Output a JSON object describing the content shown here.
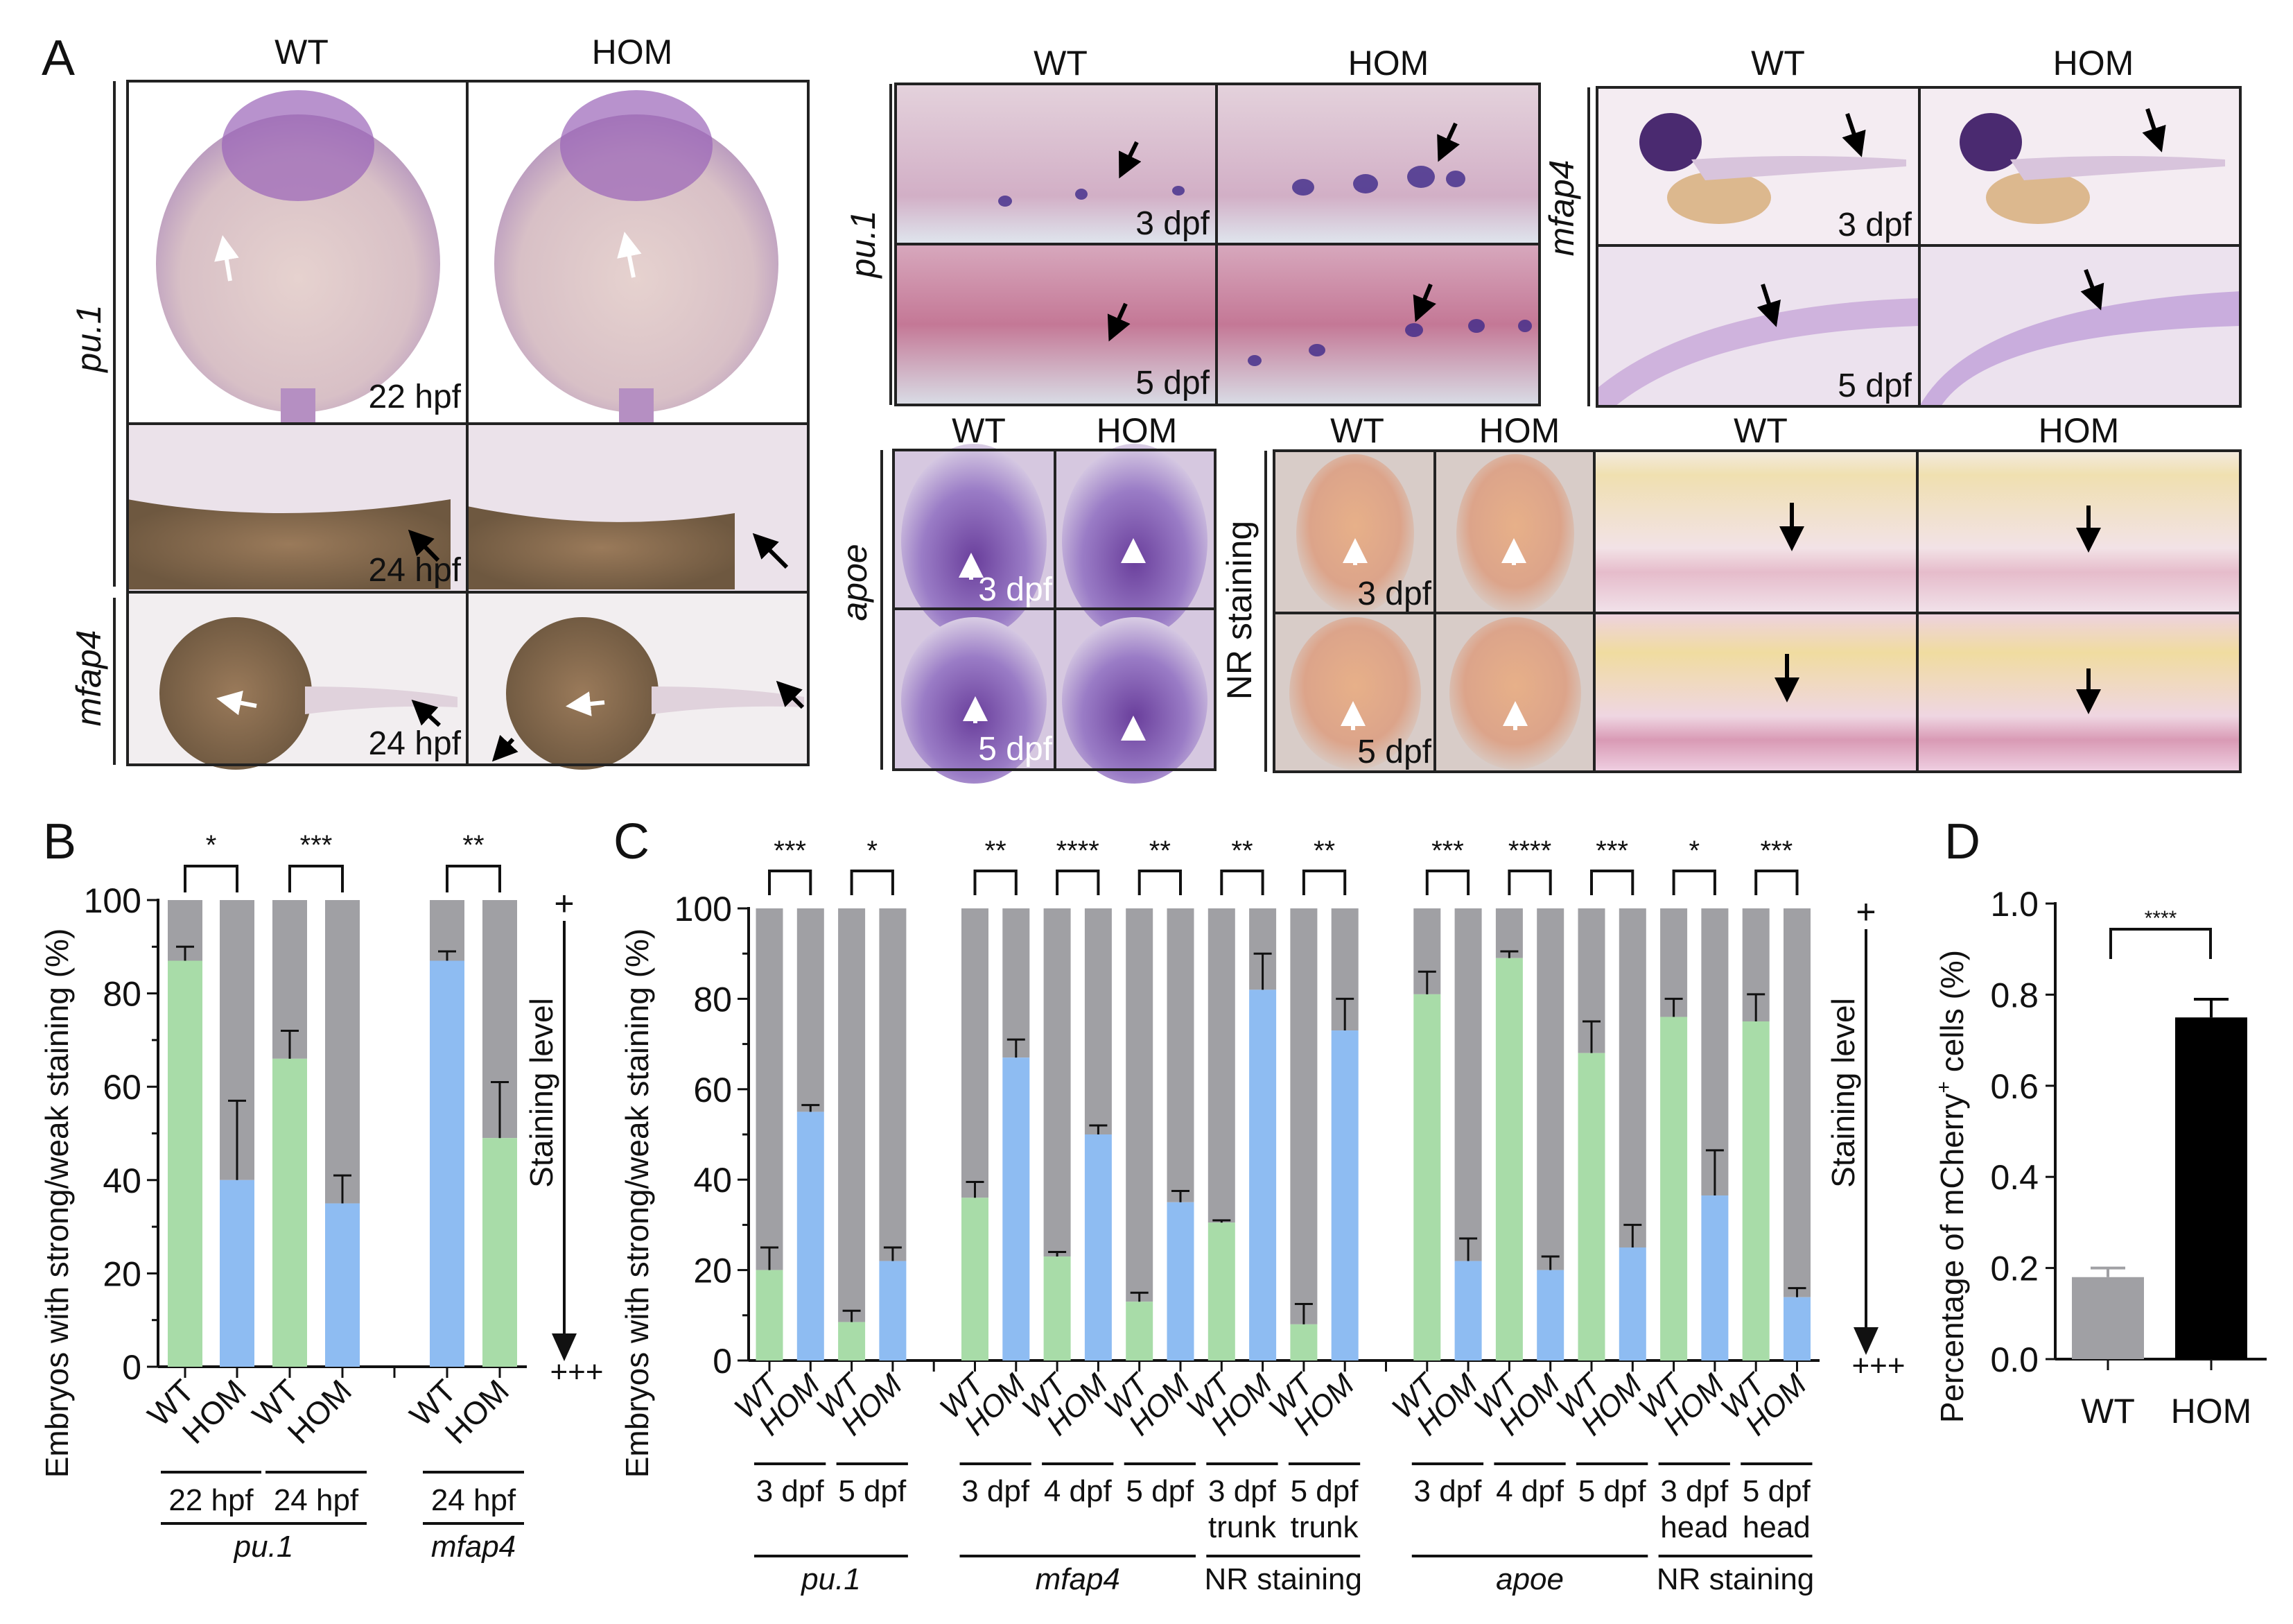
{
  "panel_labels": {
    "a": "A",
    "b": "B",
    "c": "C",
    "d": "D"
  },
  "panel_a": {
    "left": {
      "col_labels": [
        "WT",
        "HOM"
      ],
      "gene_labels": [
        "pu.1",
        "mfap4"
      ],
      "stage_labels": [
        "22 hpf",
        "24 hpf",
        "24 hpf"
      ]
    },
    "pu1_trunk": {
      "gene": "pu.1",
      "col_labels": [
        "WT",
        "HOM"
      ],
      "stage_labels": [
        "3 dpf",
        "5 dpf"
      ]
    },
    "mfap4_larva": {
      "gene": "mfap4",
      "col_labels": [
        "WT",
        "HOM"
      ],
      "stage_labels": [
        "3 dpf",
        "5 dpf"
      ]
    },
    "apoe_head": {
      "gene": "apoe",
      "col_labels": [
        "WT",
        "HOM"
      ],
      "stage_labels": [
        "3 dpf",
        "5 dpf"
      ]
    },
    "nr": {
      "label": "NR staining",
      "col_labels": [
        "WT",
        "HOM",
        "WT",
        "HOM"
      ],
      "stage_labels": [
        "3 dpf",
        "5 dpf"
      ]
    }
  },
  "colors": {
    "green": "#a8dca8",
    "blue": "#8ebcf2",
    "gray": "#a0a0a4",
    "black": "#000000"
  },
  "chart_data": [
    {
      "type": "bar",
      "stacked": true,
      "title": "B",
      "ylabel": "Embryos with strong/weak staining (%)",
      "ylim": [
        0,
        100
      ],
      "yticks": [
        "0",
        "20",
        "40",
        "60",
        "80",
        "100"
      ],
      "categories": [
        "WT",
        "HOM",
        "WT",
        "HOM",
        "WT",
        "HOM"
      ],
      "values": [
        87,
        40,
        66,
        35,
        87,
        49
      ],
      "errors": [
        3,
        17,
        6,
        6,
        2,
        12
      ],
      "bar_colors": [
        "green",
        "blue",
        "green",
        "blue",
        "blue",
        "green"
      ],
      "remainder_color": "gray",
      "subgroups": [
        {
          "label": [
            "22 hpf"
          ],
          "bars": [
            0,
            1
          ]
        },
        {
          "label": [
            "24 hpf"
          ],
          "bars": [
            2,
            3
          ]
        },
        {
          "label": [
            "24 hpf"
          ],
          "bars": [
            4,
            5
          ]
        }
      ],
      "groups": [
        {
          "label": "pu.1",
          "bars": [
            0,
            3
          ]
        },
        {
          "label": "mfap4",
          "bars": [
            4,
            5
          ]
        }
      ],
      "significance": [
        {
          "bars": [
            0,
            1
          ],
          "label": "*"
        },
        {
          "bars": [
            2,
            3
          ],
          "label": "***"
        },
        {
          "bars": [
            4,
            5
          ],
          "label": "**"
        }
      ],
      "scale": {
        "top": "+",
        "bottom": "+++",
        "label": "Staining level"
      }
    },
    {
      "type": "bar",
      "stacked": true,
      "title": "C",
      "ylabel": "Embryos with strong/weak staining (%)",
      "ylim": [
        0,
        100
      ],
      "yticks": [
        "0",
        "20",
        "40",
        "60",
        "80",
        "100"
      ],
      "categories": [
        "WT",
        "HOM",
        "WT",
        "HOM",
        "WT",
        "HOM",
        "WT",
        "HOM",
        "WT",
        "HOM",
        "WT",
        "HOM",
        "WT",
        "HOM",
        "WT",
        "HOM",
        "WT",
        "HOM",
        "WT",
        "HOM",
        "WT",
        "HOM",
        "WT",
        "HOM"
      ],
      "values": [
        20,
        55,
        8.5,
        22,
        36,
        67,
        23,
        50,
        13,
        35,
        30.5,
        82,
        8,
        73,
        81,
        22,
        89,
        20,
        68,
        25,
        76,
        36.5,
        75,
        14
      ],
      "errors": [
        5,
        1.5,
        2.5,
        3,
        3.5,
        4,
        1,
        2,
        2,
        2.5,
        0.5,
        8,
        4.5,
        7,
        5,
        5,
        1.5,
        3,
        7,
        5,
        4,
        10,
        6,
        2
      ],
      "bar_colors": [
        "green",
        "blue",
        "green",
        "blue",
        "green",
        "blue",
        "green",
        "blue",
        "green",
        "blue",
        "green",
        "blue",
        "green",
        "blue",
        "green",
        "blue",
        "green",
        "blue",
        "green",
        "blue",
        "green",
        "blue",
        "green",
        "blue"
      ],
      "remainder_color": "gray",
      "subgroups": [
        {
          "label": [
            "3 dpf"
          ],
          "bars": [
            0,
            1
          ]
        },
        {
          "label": [
            "5 dpf"
          ],
          "bars": [
            2,
            3
          ]
        },
        {
          "label": [
            "3 dpf"
          ],
          "bars": [
            4,
            5
          ]
        },
        {
          "label": [
            "4 dpf"
          ],
          "bars": [
            6,
            7
          ]
        },
        {
          "label": [
            "5 dpf"
          ],
          "bars": [
            8,
            9
          ]
        },
        {
          "label": [
            "3 dpf",
            "trunk"
          ],
          "bars": [
            10,
            11
          ]
        },
        {
          "label": [
            "5 dpf",
            "trunk"
          ],
          "bars": [
            12,
            13
          ]
        },
        {
          "label": [
            "3 dpf"
          ],
          "bars": [
            14,
            15
          ]
        },
        {
          "label": [
            "4 dpf"
          ],
          "bars": [
            16,
            17
          ]
        },
        {
          "label": [
            "5 dpf"
          ],
          "bars": [
            18,
            19
          ]
        },
        {
          "label": [
            "3 dpf",
            "head"
          ],
          "bars": [
            20,
            21
          ]
        },
        {
          "label": [
            "5 dpf",
            "head"
          ],
          "bars": [
            22,
            23
          ]
        }
      ],
      "groups": [
        {
          "label": "pu.1",
          "bars": [
            0,
            3
          ]
        },
        {
          "label": "mfap4",
          "bars": [
            4,
            9
          ]
        },
        {
          "label": "NR staining",
          "bars": [
            10,
            13
          ]
        },
        {
          "label": "apoe",
          "bars": [
            14,
            19
          ]
        },
        {
          "label": "NR staining",
          "bars": [
            20,
            23
          ]
        }
      ],
      "significance": [
        {
          "bars": [
            0,
            1
          ],
          "label": "***"
        },
        {
          "bars": [
            2,
            3
          ],
          "label": "*"
        },
        {
          "bars": [
            4,
            5
          ],
          "label": "**"
        },
        {
          "bars": [
            6,
            7
          ],
          "label": "****"
        },
        {
          "bars": [
            8,
            9
          ],
          "label": "**"
        },
        {
          "bars": [
            10,
            11
          ],
          "label": "**"
        },
        {
          "bars": [
            12,
            13
          ],
          "label": "**"
        },
        {
          "bars": [
            14,
            15
          ],
          "label": "***"
        },
        {
          "bars": [
            16,
            17
          ],
          "label": "****"
        },
        {
          "bars": [
            18,
            19
          ],
          "label": "***"
        },
        {
          "bars": [
            20,
            21
          ],
          "label": "*"
        },
        {
          "bars": [
            22,
            23
          ],
          "label": "***"
        }
      ],
      "scale": {
        "top": "+",
        "bottom": "+++",
        "label": "Staining level"
      }
    },
    {
      "type": "bar",
      "title": "D",
      "ylabel_pre": "Percentage of mCherry",
      "ylabel_sup": "+",
      "ylabel_post": " cells (%)",
      "ylim": [
        0,
        1.0
      ],
      "yticks": [
        "0.0",
        "0.2",
        "0.4",
        "0.6",
        "0.8",
        "1.0"
      ],
      "categories": [
        "WT",
        "HOM"
      ],
      "values": [
        0.18,
        0.75
      ],
      "errors": [
        0.02,
        0.04
      ],
      "bar_colors": [
        "gray",
        "black"
      ],
      "significance": [
        {
          "bars": [
            0,
            1
          ],
          "label": "****"
        }
      ]
    }
  ]
}
